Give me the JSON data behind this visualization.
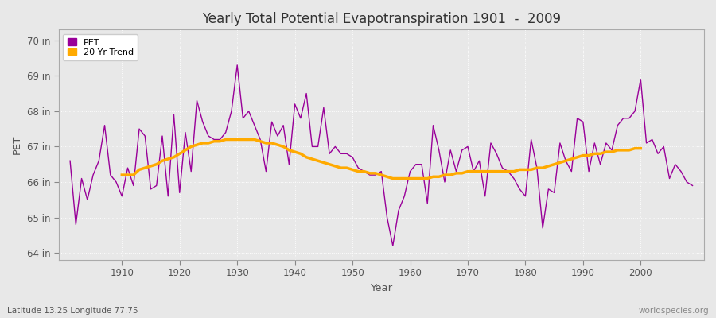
{
  "title": "Yearly Total Potential Evapotranspiration 1901  -  2009",
  "xlabel": "Year",
  "ylabel": "PET",
  "footnote_left": "Latitude 13.25 Longitude 77.75",
  "footnote_right": "worldspecies.org",
  "ylim": [
    63.8,
    70.3
  ],
  "xlim": [
    1899,
    2011
  ],
  "yticks": [
    64,
    65,
    66,
    67,
    68,
    69,
    70
  ],
  "ytick_labels": [
    "64 in",
    "65 in",
    "66 in",
    "67 in",
    "68 in",
    "69 in",
    "70 in"
  ],
  "xticks": [
    1910,
    1920,
    1930,
    1940,
    1950,
    1960,
    1970,
    1980,
    1990,
    2000
  ],
  "pet_color": "#990099",
  "trend_color": "#ffaa00",
  "bg_color": "#e8e8e8",
  "plot_bg_color": "#e8e8e8",
  "grid_color": "#ffffff",
  "pet_label": "PET",
  "trend_label": "20 Yr Trend",
  "years": [
    1901,
    1902,
    1903,
    1904,
    1905,
    1906,
    1907,
    1908,
    1909,
    1910,
    1911,
    1912,
    1913,
    1914,
    1915,
    1916,
    1917,
    1918,
    1919,
    1920,
    1921,
    1922,
    1923,
    1924,
    1925,
    1926,
    1927,
    1928,
    1929,
    1930,
    1931,
    1932,
    1933,
    1934,
    1935,
    1936,
    1937,
    1938,
    1939,
    1940,
    1941,
    1942,
    1943,
    1944,
    1945,
    1946,
    1947,
    1948,
    1949,
    1950,
    1951,
    1952,
    1953,
    1954,
    1955,
    1956,
    1957,
    1958,
    1959,
    1960,
    1961,
    1962,
    1963,
    1964,
    1965,
    1966,
    1967,
    1968,
    1969,
    1970,
    1971,
    1972,
    1973,
    1974,
    1975,
    1976,
    1977,
    1978,
    1979,
    1980,
    1981,
    1982,
    1983,
    1984,
    1985,
    1986,
    1987,
    1988,
    1989,
    1990,
    1991,
    1992,
    1993,
    1994,
    1995,
    1996,
    1997,
    1998,
    1999,
    2000,
    2001,
    2002,
    2003,
    2004,
    2005,
    2006,
    2007,
    2008,
    2009
  ],
  "pet_values": [
    66.6,
    64.8,
    66.1,
    65.5,
    66.2,
    66.6,
    67.6,
    66.2,
    66.0,
    65.6,
    66.4,
    65.9,
    67.5,
    67.3,
    65.8,
    65.9,
    67.3,
    65.6,
    67.9,
    65.7,
    67.4,
    66.3,
    68.3,
    67.7,
    67.3,
    67.2,
    67.2,
    67.4,
    68.0,
    69.3,
    67.8,
    68.0,
    67.6,
    67.2,
    66.3,
    67.7,
    67.3,
    67.6,
    66.5,
    68.2,
    67.8,
    68.5,
    67.0,
    67.0,
    68.1,
    66.8,
    67.0,
    66.8,
    66.8,
    66.7,
    66.4,
    66.3,
    66.2,
    66.2,
    66.3,
    65.0,
    64.2,
    65.2,
    65.6,
    66.3,
    66.5,
    66.5,
    65.4,
    67.6,
    66.9,
    66.0,
    66.9,
    66.3,
    66.9,
    67.0,
    66.3,
    66.6,
    65.6,
    67.1,
    66.8,
    66.4,
    66.3,
    66.1,
    65.8,
    65.6,
    67.2,
    66.4,
    64.7,
    65.8,
    65.7,
    67.1,
    66.6,
    66.3,
    67.8,
    67.7,
    66.3,
    67.1,
    66.5,
    67.1,
    66.9,
    67.6,
    67.8,
    67.8,
    68.0,
    68.9,
    67.1,
    67.2,
    66.8,
    67.0,
    66.1,
    66.5,
    66.3,
    66.0,
    65.9
  ],
  "trend_values": [
    null,
    null,
    null,
    null,
    null,
    null,
    null,
    null,
    null,
    66.2,
    66.2,
    66.2,
    66.35,
    66.4,
    66.45,
    66.5,
    66.6,
    66.65,
    66.7,
    66.8,
    66.9,
    67.0,
    67.05,
    67.1,
    67.1,
    67.15,
    67.15,
    67.2,
    67.2,
    67.2,
    67.2,
    67.2,
    67.2,
    67.15,
    67.1,
    67.1,
    67.05,
    67.0,
    66.9,
    66.85,
    66.8,
    66.7,
    66.65,
    66.6,
    66.55,
    66.5,
    66.45,
    66.4,
    66.4,
    66.35,
    66.3,
    66.3,
    66.25,
    66.25,
    66.2,
    66.15,
    66.1,
    66.1,
    66.1,
    66.1,
    66.1,
    66.1,
    66.1,
    66.15,
    66.15,
    66.2,
    66.2,
    66.25,
    66.25,
    66.3,
    66.3,
    66.3,
    66.3,
    66.3,
    66.3,
    66.3,
    66.3,
    66.3,
    66.35,
    66.35,
    66.35,
    66.4,
    66.4,
    66.45,
    66.5,
    66.55,
    66.6,
    66.65,
    66.7,
    66.75,
    66.75,
    66.8,
    66.8,
    66.85,
    66.85,
    66.9,
    66.9,
    66.9,
    66.95,
    66.95,
    null,
    null,
    null,
    null,
    null,
    null,
    null,
    null,
    null
  ]
}
